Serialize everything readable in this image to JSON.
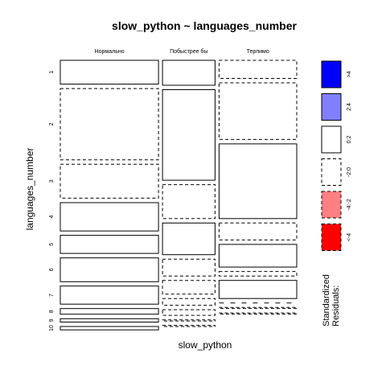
{
  "chart_data": {
    "type": "mosaic",
    "title": "slow_python ~ languages_number",
    "xlabel": "slow_python",
    "ylabel": "languages_number",
    "columns": [
      "Нормально",
      "Побыстрее бы",
      "Терпимо"
    ],
    "rows": [
      "1",
      "2",
      "3",
      "4",
      "5",
      "6",
      "7",
      "8",
      "9",
      "10"
    ],
    "column_proportions": [
      0.43,
      0.23,
      0.34
    ],
    "cell_proportions": [
      [
        0.105,
        0.315,
        0.15,
        0.125,
        0.08,
        0.105,
        0.08,
        0.025,
        0.015,
        0.015
      ],
      [
        0.11,
        0.4,
        0.15,
        0.14,
        0.075,
        0.06,
        0.03,
        0.025,
        0.005,
        0.005
      ],
      [
        0.08,
        0.25,
        0.33,
        0.075,
        0.1,
        0.02,
        0.08,
        0.0,
        0.005,
        0.005
      ]
    ],
    "residual_class": [
      [
        "pos_0_2",
        "neg_2_0",
        "neg_2_0",
        "pos_0_2",
        "pos_0_2",
        "pos_0_2",
        "pos_0_2",
        "pos_0_2",
        "pos_0_2",
        "pos_0_2"
      ],
      [
        "pos_0_2",
        "pos_0_2",
        "neg_2_0",
        "pos_0_2",
        "neg_2_0",
        "neg_2_0",
        "neg_2_0",
        "neg_2_0",
        "neg_2_0",
        "neg_2_0"
      ],
      [
        "neg_2_0",
        "neg_2_0",
        "pos_0_2",
        "neg_2_0",
        "pos_0_2",
        "neg_2_0",
        "pos_0_2",
        "neg_2_0",
        "neg_2_0",
        "neg_2_0"
      ]
    ],
    "legend": {
      "title_lines": [
        "Standardized",
        "Residuals:"
      ],
      "entries": [
        {
          "label": ">4",
          "color": "#0000ff",
          "dashed": false
        },
        {
          "label": "2:4",
          "color": "#8080ff",
          "dashed": false
        },
        {
          "label": "0:2",
          "color": "#ffffff",
          "dashed": false
        },
        {
          "label": "-2:0",
          "color": "#ffffff",
          "dashed": true
        },
        {
          "label": "-4:-2",
          "color": "#ff8080",
          "dashed": true
        },
        {
          "label": "<-4",
          "color": "#ff0000",
          "dashed": true
        }
      ]
    }
  }
}
